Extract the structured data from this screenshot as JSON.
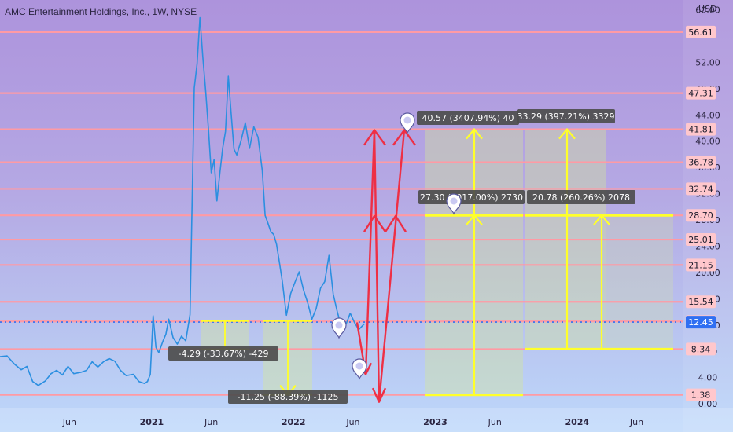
{
  "header": {
    "title": "AMC Entertainment Holdings, Inc., 1W, NYSE",
    "currency": "USD"
  },
  "chart_data": {
    "type": "line",
    "title": "AMC Entertainment Holdings, Inc., 1W, NYSE",
    "ylabel": "USD",
    "ylim": [
      -0.7,
      61.5
    ],
    "xlim": [
      2019.93,
      2024.75
    ],
    "x_tick_labels": [
      {
        "label": "Jun",
        "x": 2020.42,
        "bold": false
      },
      {
        "label": "2021",
        "x": 2021.0,
        "bold": true
      },
      {
        "label": "Jun",
        "x": 2021.42,
        "bold": false
      },
      {
        "label": "2022",
        "x": 2022.0,
        "bold": true
      },
      {
        "label": "Jun",
        "x": 2022.42,
        "bold": false
      },
      {
        "label": "2023",
        "x": 2023.0,
        "bold": true
      },
      {
        "label": "Jun",
        "x": 2023.42,
        "bold": false
      },
      {
        "label": "2024",
        "x": 2024.0,
        "bold": true
      },
      {
        "label": "Jun",
        "x": 2024.42,
        "bold": false
      }
    ],
    "y_tick_labels": [
      "60.00",
      "52.00",
      "48.00",
      "44.00",
      "40.00",
      "36.00",
      "32.00",
      "28.00",
      "24.00",
      "20.00",
      "16.00",
      "12.00",
      "8.00",
      "4.00",
      "0.00"
    ],
    "horizontal_levels": [
      {
        "label": "56.61",
        "value": 56.61
      },
      {
        "label": "47.31",
        "value": 47.31
      },
      {
        "label": "41.81",
        "value": 41.81
      },
      {
        "label": "36.78",
        "value": 36.78
      },
      {
        "label": "32.74",
        "value": 32.74
      },
      {
        "label": "28.70",
        "value": 28.7
      },
      {
        "label": "25.01",
        "value": 25.01
      },
      {
        "label": "21.15",
        "value": 21.15
      },
      {
        "label": "15.54",
        "value": 15.54
      },
      {
        "label": "12.55",
        "value": 12.55
      },
      {
        "label": "8.34",
        "value": 8.34
      },
      {
        "label": "1.38",
        "value": 1.38
      }
    ],
    "current_price": {
      "label": "12.45",
      "value": 12.45
    },
    "series": [
      {
        "color": "#2b8fe0",
        "x": [
          2019.93,
          2019.98,
          2020.03,
          2020.08,
          2020.12,
          2020.16,
          2020.2,
          2020.25,
          2020.29,
          2020.33,
          2020.37,
          2020.41,
          2020.45,
          2020.5,
          2020.54,
          2020.58,
          2020.62,
          2020.66,
          2020.7,
          2020.74,
          2020.78,
          2020.82,
          2020.87,
          2020.91,
          2020.95,
          2020.97,
          2020.99,
          2021.01,
          2021.03,
          2021.05,
          2021.08,
          2021.1,
          2021.12,
          2021.15,
          2021.18,
          2021.21,
          2021.24,
          2021.27,
          2021.3,
          2021.32,
          2021.34,
          2021.36,
          2021.38,
          2021.4,
          2021.42,
          2021.44,
          2021.46,
          2021.48,
          2021.5,
          2021.52,
          2021.54,
          2021.56,
          2021.58,
          2021.6,
          2021.63,
          2021.66,
          2021.69,
          2021.72,
          2021.75,
          2021.78,
          2021.8,
          2021.82,
          2021.84,
          2021.86,
          2021.88,
          2021.9,
          2021.92,
          2021.95,
          2021.98,
          2022.01,
          2022.04,
          2022.07,
          2022.1,
          2022.13,
          2022.16,
          2022.19,
          2022.22,
          2022.25,
          2022.28,
          2022.31,
          2022.34,
          2022.37,
          2022.4,
          2022.43,
          2022.46,
          2022.5
        ],
        "y": [
          7.2,
          7.3,
          6.1,
          5.2,
          5.7,
          3.4,
          2.8,
          3.5,
          4.6,
          5.1,
          4.4,
          5.7,
          4.6,
          4.8,
          5.1,
          6.4,
          5.6,
          6.4,
          6.9,
          6.5,
          5.1,
          4.3,
          4.5,
          3.4,
          3.1,
          3.4,
          4.5,
          13.4,
          8.6,
          7.8,
          9.6,
          10.6,
          12.9,
          10.1,
          9.1,
          10.3,
          9.6,
          13.6,
          48.1,
          51.8,
          58.8,
          52.9,
          47.8,
          41.9,
          35.2,
          37.2,
          30.9,
          35.1,
          38.9,
          41.5,
          49.9,
          44.2,
          38.8,
          37.9,
          40.1,
          42.8,
          38.9,
          42.2,
          40.6,
          35.5,
          28.7,
          27.5,
          26.2,
          25.8,
          24.3,
          21.6,
          18.8,
          13.5,
          16.8,
          18.5,
          20.1,
          17.4,
          15.4,
          12.9,
          14.5,
          17.6,
          18.6,
          22.6,
          16.7,
          13.9,
          11.6,
          12.1,
          13.8,
          12.4,
          11.3,
          12.2
        ]
      }
    ],
    "price_labels": [
      {
        "text": "-4.29 (-33.67%) -429"
      },
      {
        "text": "-11.25 (-88.39%) -1125"
      },
      {
        "text": "40.57 (3407.94%) 40"
      },
      {
        "text": "33.29 (397.21%) 3329"
      },
      {
        "text": "27.30 (1017.00%) 2730"
      },
      {
        "text": "20.78 (260.26%) 2078"
      }
    ],
    "colors": {
      "level_line": "#ff9aa4",
      "current_price": "#2f6ff2",
      "measure": "#ffff2a",
      "arrow": "#ee2f45",
      "line": "#2b8fe0"
    }
  }
}
